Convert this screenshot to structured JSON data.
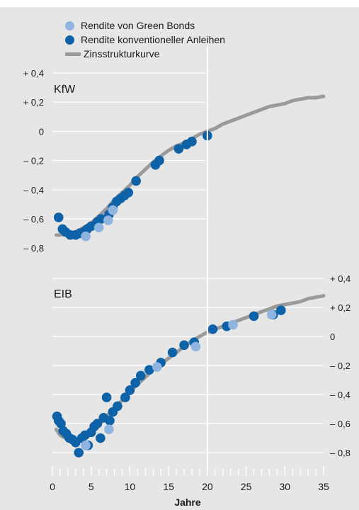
{
  "chart_data": {
    "type": "scatter",
    "xlabel": "Jahre",
    "x_ticks": [
      "0",
      "5",
      "10",
      "15",
      "20",
      "25",
      "30",
      "35"
    ],
    "xlim": [
      0,
      35
    ],
    "legend": {
      "placement": "top-left",
      "items": [
        {
          "label": "Rendite von Green Bonds",
          "kind": "marker",
          "color": "#8fb4e0"
        },
        {
          "label": "Rendite konventioneller Anleihen",
          "kind": "marker",
          "color": "#0d62a8"
        },
        {
          "label": "Zinsstrukturkurve",
          "kind": "line",
          "color": "#9a9a9a"
        }
      ]
    },
    "panels": [
      {
        "label": "KfW",
        "y_ticks": [
          "+ 0,4",
          "+ 0,2",
          "0",
          "– 0,2",
          "– 0,4",
          "– 0,6",
          "– 0,8"
        ],
        "y_tick_values": [
          0.4,
          0.2,
          0,
          -0.2,
          -0.4,
          -0.6,
          -0.8
        ],
        "y_axis": "left",
        "ylim": [
          -0.85,
          0.45
        ],
        "curve": [
          [
            0.5,
            -0.71
          ],
          [
            1,
            -0.71
          ],
          [
            2,
            -0.7
          ],
          [
            3,
            -0.69
          ],
          [
            4,
            -0.66
          ],
          [
            5,
            -0.63
          ],
          [
            6,
            -0.58
          ],
          [
            7,
            -0.53
          ],
          [
            8,
            -0.47
          ],
          [
            9,
            -0.42
          ],
          [
            10,
            -0.37
          ],
          [
            11,
            -0.31
          ],
          [
            12,
            -0.26
          ],
          [
            13,
            -0.21
          ],
          [
            14,
            -0.17
          ],
          [
            15,
            -0.13
          ],
          [
            16,
            -0.1
          ],
          [
            17,
            -0.08
          ],
          [
            18,
            -0.05
          ],
          [
            19,
            -0.02
          ],
          [
            20,
            0.0
          ],
          [
            21,
            0.02
          ],
          [
            22,
            0.05
          ],
          [
            23,
            0.07
          ],
          [
            24,
            0.09
          ],
          [
            25,
            0.11
          ],
          [
            26,
            0.13
          ],
          [
            27,
            0.15
          ],
          [
            28,
            0.17
          ],
          [
            29,
            0.18
          ],
          [
            30,
            0.19
          ],
          [
            31,
            0.21
          ],
          [
            32,
            0.22
          ],
          [
            33,
            0.23
          ],
          [
            34,
            0.23
          ],
          [
            35,
            0.24
          ]
        ],
        "conventional": [
          [
            0.8,
            -0.59
          ],
          [
            1.3,
            -0.67
          ],
          [
            1.7,
            -0.69
          ],
          [
            2.3,
            -0.71
          ],
          [
            3.0,
            -0.71
          ],
          [
            3.5,
            -0.7
          ],
          [
            4.0,
            -0.69
          ],
          [
            4.5,
            -0.67
          ],
          [
            5.0,
            -0.65
          ],
          [
            5.8,
            -0.62
          ],
          [
            6.3,
            -0.6
          ],
          [
            7.3,
            -0.57
          ],
          [
            7.8,
            -0.52
          ],
          [
            8.3,
            -0.48
          ],
          [
            8.8,
            -0.46
          ],
          [
            9.3,
            -0.44
          ],
          [
            9.8,
            -0.42
          ],
          [
            10.8,
            -0.34
          ],
          [
            13.3,
            -0.23
          ],
          [
            13.8,
            -0.2
          ],
          [
            16.3,
            -0.12
          ],
          [
            17.3,
            -0.09
          ],
          [
            18.0,
            -0.07
          ],
          [
            20.0,
            -0.03
          ]
        ],
        "green": [
          [
            4.3,
            -0.72
          ],
          [
            6.0,
            -0.66
          ],
          [
            7.2,
            -0.61
          ],
          [
            7.8,
            -0.54
          ]
        ]
      },
      {
        "label": "EIB",
        "y_ticks": [
          "+ 0,4",
          "+ 0,2",
          "0",
          "– 0,2",
          "– 0,4",
          "– 0,6",
          "– 0,8"
        ],
        "y_tick_values": [
          0.4,
          0.2,
          0,
          -0.2,
          -0.4,
          -0.6,
          -0.8
        ],
        "y_axis": "right",
        "ylim": [
          -0.85,
          0.45
        ],
        "curve": [
          [
            0.5,
            -0.64
          ],
          [
            1,
            -0.68
          ],
          [
            2,
            -0.71
          ],
          [
            3,
            -0.72
          ],
          [
            4,
            -0.71
          ],
          [
            5,
            -0.67
          ],
          [
            6,
            -0.61
          ],
          [
            7,
            -0.55
          ],
          [
            8,
            -0.49
          ],
          [
            9,
            -0.44
          ],
          [
            10,
            -0.38
          ],
          [
            11,
            -0.33
          ],
          [
            12,
            -0.28
          ],
          [
            13,
            -0.23
          ],
          [
            14,
            -0.19
          ],
          [
            15,
            -0.15
          ],
          [
            16,
            -0.11
          ],
          [
            17,
            -0.07
          ],
          [
            18,
            -0.03
          ],
          [
            19,
            0.0
          ],
          [
            20,
            0.03
          ],
          [
            21,
            0.05
          ],
          [
            22,
            0.07
          ],
          [
            23,
            0.09
          ],
          [
            24,
            0.11
          ],
          [
            25,
            0.13
          ],
          [
            26,
            0.15
          ],
          [
            27,
            0.17
          ],
          [
            28,
            0.19
          ],
          [
            29,
            0.21
          ],
          [
            30,
            0.22
          ],
          [
            31,
            0.23
          ],
          [
            32,
            0.24
          ],
          [
            33,
            0.26
          ],
          [
            34,
            0.27
          ],
          [
            35,
            0.28
          ]
        ],
        "conventional": [
          [
            0.6,
            -0.55
          ],
          [
            0.8,
            -0.58
          ],
          [
            1.1,
            -0.6
          ],
          [
            1.4,
            -0.65
          ],
          [
            1.8,
            -0.67
          ],
          [
            2.2,
            -0.7
          ],
          [
            2.6,
            -0.71
          ],
          [
            3.0,
            -0.73
          ],
          [
            3.4,
            -0.8
          ],
          [
            3.8,
            -0.7
          ],
          [
            4.2,
            -0.68
          ],
          [
            4.6,
            -0.75
          ],
          [
            5.0,
            -0.66
          ],
          [
            5.4,
            -0.62
          ],
          [
            5.8,
            -0.6
          ],
          [
            6.2,
            -0.7
          ],
          [
            6.6,
            -0.56
          ],
          [
            7.0,
            -0.42
          ],
          [
            7.4,
            -0.58
          ],
          [
            7.8,
            -0.52
          ],
          [
            8.4,
            -0.48
          ],
          [
            9.4,
            -0.42
          ],
          [
            10.0,
            -0.37
          ],
          [
            10.7,
            -0.32
          ],
          [
            11.4,
            -0.27
          ],
          [
            12.5,
            -0.23
          ],
          [
            14.0,
            -0.18
          ],
          [
            15.5,
            -0.11
          ],
          [
            17.0,
            -0.06
          ],
          [
            18.3,
            -0.04
          ],
          [
            20.7,
            0.05
          ],
          [
            22.5,
            0.07
          ],
          [
            26.0,
            0.14
          ],
          [
            28.5,
            0.15
          ],
          [
            29.5,
            0.18
          ]
        ],
        "green": [
          [
            4.3,
            -0.75
          ],
          [
            7.3,
            -0.64
          ],
          [
            13.5,
            -0.21
          ],
          [
            18.5,
            -0.07
          ],
          [
            23.3,
            0.08
          ],
          [
            28.3,
            0.15
          ]
        ]
      }
    ]
  }
}
